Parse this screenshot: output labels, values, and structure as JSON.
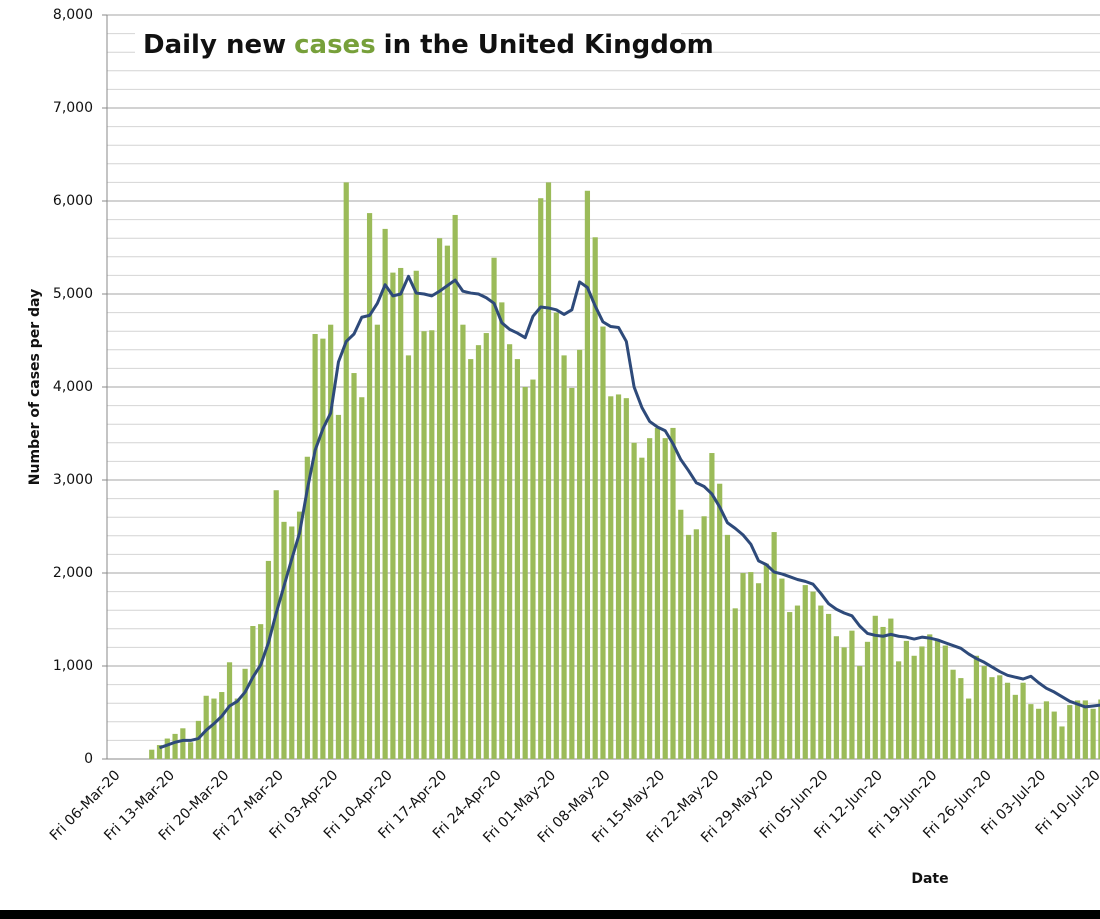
{
  "chart_data": {
    "type": "bar",
    "title": [
      "Daily new",
      "cases",
      "in the United Kingdom"
    ],
    "title_colors": [
      "#111111",
      "#77a03a",
      "#111111"
    ],
    "y_label": "Number of cases per day",
    "x_label": "Date",
    "categories": [
      "Fri 06-Mar-20",
      null,
      null,
      null,
      null,
      null,
      null,
      "Fri 13-Mar-20",
      null,
      null,
      null,
      null,
      null,
      null,
      "Fri 20-Mar-20",
      null,
      null,
      null,
      null,
      null,
      null,
      "Fri 27-Mar-20",
      null,
      null,
      null,
      null,
      null,
      null,
      "Fri 03-Apr-20",
      null,
      null,
      null,
      null,
      null,
      null,
      "Fri 10-Apr-20",
      null,
      null,
      null,
      null,
      null,
      null,
      "Fri 17-Apr-20",
      null,
      null,
      null,
      null,
      null,
      null,
      "Fri 24-Apr-20",
      null,
      null,
      null,
      null,
      null,
      null,
      "Fri 01-May-20",
      null,
      null,
      null,
      null,
      null,
      null,
      "Fri 08-May-20",
      null,
      null,
      null,
      null,
      null,
      null,
      "Fri 15-May-20",
      null,
      null,
      null,
      null,
      null,
      null,
      "Fri 22-May-20",
      null,
      null,
      null,
      null,
      null,
      null,
      "Fri 29-May-20",
      null,
      null,
      null,
      null,
      null,
      null,
      "Fri 05-Jun-20",
      null,
      null,
      null,
      null,
      null,
      null,
      "Fri 12-Jun-20",
      null,
      null,
      null,
      null,
      null,
      null,
      "Fri 19-Jun-20",
      null,
      null,
      null,
      null,
      null,
      null,
      "Fri 26-Jun-20",
      null,
      null,
      null,
      null,
      null,
      null,
      "Fri 03-Jul-20",
      null,
      null,
      null,
      null,
      null,
      null,
      "Fri 10-Jul-20",
      null
    ],
    "series": [
      {
        "type": "bar",
        "color": "#9bbb59",
        "values": [
          null,
          null,
          null,
          null,
          null,
          100,
          150,
          220,
          270,
          330,
          180,
          410,
          680,
          650,
          720,
          1040,
          650,
          970,
          1430,
          1450,
          2130,
          2890,
          2550,
          2500,
          2660,
          3250,
          4570,
          4520,
          4670,
          3700,
          6200,
          4150,
          3890,
          5870,
          4670,
          5700,
          5230,
          5280,
          4340,
          5250,
          4600,
          4610,
          5600,
          5520,
          5850,
          4670,
          4300,
          4450,
          4580,
          5390,
          4910,
          4460,
          4300,
          4000,
          4080,
          6030,
          6200,
          4800,
          4340,
          3990,
          4400,
          6110,
          5610,
          4650,
          3900,
          3920,
          3880,
          3400,
          3240,
          3450,
          3560,
          3450,
          3560,
          2680,
          2410,
          2470,
          2610,
          3290,
          2960,
          2410,
          1620,
          2000,
          2010,
          1890,
          2100,
          2440,
          1940,
          1580,
          1650,
          1870,
          1800,
          1650,
          1560,
          1320,
          1200,
          1380,
          1000,
          1260,
          1540,
          1420,
          1510,
          1050,
          1270,
          1110,
          1210,
          1340,
          1290,
          1220,
          960,
          870,
          650,
          1110,
          1000,
          880,
          900,
          820,
          690,
          820,
          590,
          540,
          620,
          510,
          350,
          580,
          630,
          630,
          540,
          640
        ]
      },
      {
        "type": "line",
        "color": "#2e4a7a",
        "values": [
          null,
          null,
          null,
          null,
          null,
          null,
          120,
          150,
          180,
          200,
          200,
          220,
          310,
          380,
          460,
          570,
          620,
          720,
          880,
          1010,
          1250,
          1570,
          1860,
          2150,
          2430,
          2900,
          3320,
          3550,
          3720,
          4270,
          4490,
          4570,
          4750,
          4770,
          4900,
          5100,
          4980,
          5000,
          5190,
          5010,
          5000,
          4980,
          5030,
          5090,
          5150,
          5030,
          5010,
          5000,
          4960,
          4900,
          4690,
          4620,
          4580,
          4530,
          4760,
          4860,
          4850,
          4830,
          4780,
          4830,
          5130,
          5070,
          4870,
          4700,
          4650,
          4640,
          4490,
          4000,
          3780,
          3630,
          3570,
          3530,
          3390,
          3220,
          3100,
          2970,
          2930,
          2850,
          2710,
          2540,
          2480,
          2410,
          2310,
          2130,
          2090,
          2010,
          1990,
          1960,
          1930,
          1910,
          1880,
          1780,
          1670,
          1610,
          1570,
          1540,
          1430,
          1350,
          1330,
          1320,
          1340,
          1320,
          1310,
          1290,
          1310,
          1300,
          1280,
          1250,
          1220,
          1190,
          1130,
          1080,
          1040,
          990,
          940,
          900,
          880,
          860,
          890,
          820,
          760,
          720,
          670,
          620,
          590,
          560,
          570,
          580
        ]
      }
    ],
    "ylim": [
      0,
      8000
    ],
    "yticks": [
      0,
      {
        "value": 1000,
        "label": "1,000"
      },
      {
        "value": 2000,
        "label": "2,000"
      },
      {
        "value": 3000,
        "label": "3,000"
      },
      {
        "value": 4000,
        "label": "4,000"
      },
      {
        "value": 5000,
        "label": "5,000"
      },
      {
        "value": 6000,
        "label": "6,000"
      },
      {
        "value": 7000,
        "label": "7,000"
      },
      {
        "value": 8000,
        "label": "8,000"
      }
    ],
    "grid": true,
    "minor_grid": true
  }
}
